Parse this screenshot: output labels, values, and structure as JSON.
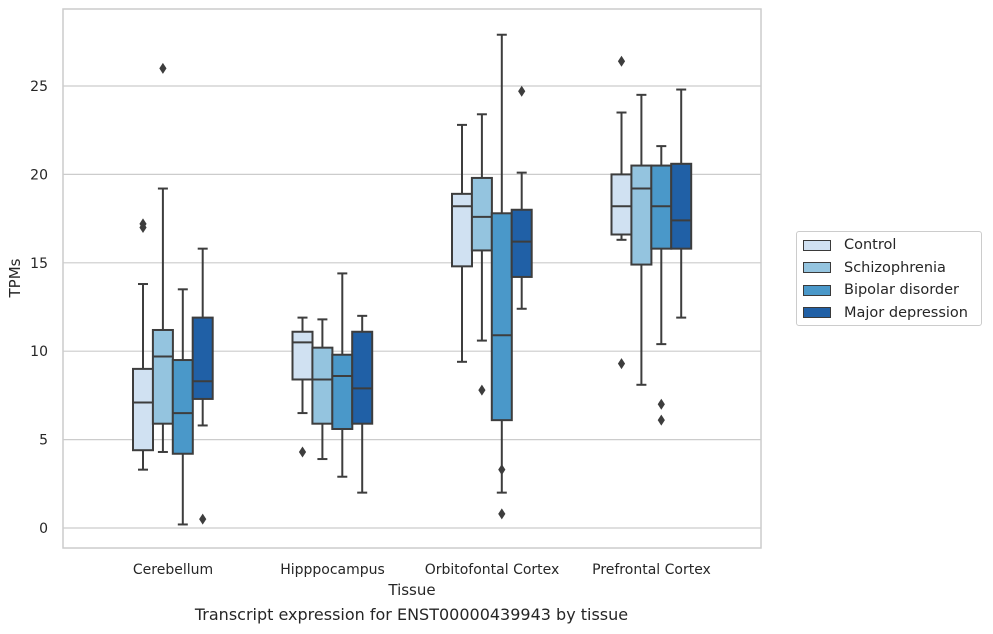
{
  "caption": "Transcript expression for ENST00000439943 by tissue",
  "colors": {
    "Control": "#d0e1f2",
    "Schizophrenia": "#94c4df",
    "Bipolar disorder": "#4a98c9",
    "Major depression": "#2060a6"
  },
  "chart_data": {
    "type": "box",
    "xlabel": "Tissue",
    "ylabel": "TPMs",
    "ylim": [
      -1.1,
      29.3
    ],
    "yticks": [
      0,
      5,
      10,
      15,
      20,
      25
    ],
    "grid": "horizontal",
    "legend_position": "right",
    "categories": [
      "Cerebellum",
      "Hipppocampus",
      "Orbitofontal Cortex",
      "Prefrontal Cortex"
    ],
    "series": [
      {
        "name": "Control",
        "boxes": [
          {
            "whisker_low": 3.3,
            "q1": 4.4,
            "median": 7.1,
            "q3": 9.0,
            "whisker_high": 13.8,
            "outliers": [
              17.0,
              17.2
            ]
          },
          {
            "whisker_low": 6.5,
            "q1": 8.4,
            "median": 10.5,
            "q3": 11.1,
            "whisker_high": 11.9,
            "outliers": [
              4.3
            ]
          },
          {
            "whisker_low": 9.4,
            "q1": 14.8,
            "median": 18.2,
            "q3": 18.9,
            "whisker_high": 22.8,
            "outliers": []
          },
          {
            "whisker_low": 16.3,
            "q1": 16.6,
            "median": 18.2,
            "q3": 20.0,
            "whisker_high": 23.5,
            "outliers": [
              9.3,
              26.4
            ]
          }
        ]
      },
      {
        "name": "Schizophrenia",
        "boxes": [
          {
            "whisker_low": 4.3,
            "q1": 5.9,
            "median": 9.7,
            "q3": 11.2,
            "whisker_high": 19.2,
            "outliers": [
              26.0
            ]
          },
          {
            "whisker_low": 3.9,
            "q1": 5.9,
            "median": 8.4,
            "q3": 10.2,
            "whisker_high": 11.8,
            "outliers": []
          },
          {
            "whisker_low": 10.6,
            "q1": 15.7,
            "median": 17.6,
            "q3": 19.8,
            "whisker_high": 23.4,
            "outliers": [
              7.8
            ]
          },
          {
            "whisker_low": 8.1,
            "q1": 14.9,
            "median": 19.2,
            "q3": 20.5,
            "whisker_high": 24.5,
            "outliers": []
          }
        ]
      },
      {
        "name": "Bipolar disorder",
        "boxes": [
          {
            "whisker_low": 0.2,
            "q1": 4.2,
            "median": 6.5,
            "q3": 9.5,
            "whisker_high": 13.5,
            "outliers": []
          },
          {
            "whisker_low": 2.9,
            "q1": 5.6,
            "median": 8.6,
            "q3": 9.8,
            "whisker_high": 14.4,
            "outliers": []
          },
          {
            "whisker_low": 2.0,
            "q1": 6.1,
            "median": 10.9,
            "q3": 17.8,
            "whisker_high": 27.9,
            "outliers": [
              3.3,
              0.8
            ]
          },
          {
            "whisker_low": 10.4,
            "q1": 15.8,
            "median": 18.2,
            "q3": 20.5,
            "whisker_high": 21.6,
            "outliers": [
              7.0,
              6.1
            ]
          }
        ]
      },
      {
        "name": "Major depression",
        "boxes": [
          {
            "whisker_low": 5.8,
            "q1": 7.3,
            "median": 8.3,
            "q3": 11.9,
            "whisker_high": 15.8,
            "outliers": [
              0.5
            ]
          },
          {
            "whisker_low": 2.0,
            "q1": 5.9,
            "median": 7.9,
            "q3": 11.1,
            "whisker_high": 12.0,
            "outliers": []
          },
          {
            "whisker_low": 12.4,
            "q1": 14.2,
            "median": 16.2,
            "q3": 18.0,
            "whisker_high": 20.1,
            "outliers": [
              24.7
            ]
          },
          {
            "whisker_low": 11.9,
            "q1": 15.8,
            "median": 17.4,
            "q3": 20.6,
            "whisker_high": 24.8,
            "outliers": []
          }
        ]
      }
    ]
  }
}
